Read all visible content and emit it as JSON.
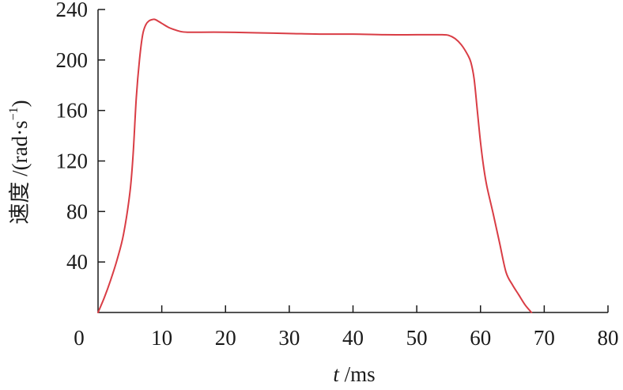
{
  "chart_data": {
    "type": "line",
    "title": "",
    "xlabel": {
      "italic": "t",
      "rest": " /ms"
    },
    "ylabel": {
      "main": "速度 /(rad·s",
      "sup": "−1",
      "end": ")"
    },
    "xlim": [
      0,
      80
    ],
    "ylim": [
      0,
      240
    ],
    "xticks": [
      0,
      10,
      20,
      30,
      40,
      50,
      60,
      70,
      80
    ],
    "yticks": [
      40,
      80,
      120,
      160,
      200,
      240
    ],
    "grid": false,
    "legend": "none",
    "series": [
      {
        "color": "#d93d45",
        "x": [
          0,
          1,
          2,
          3,
          4,
          5,
          5.5,
          6,
          6.5,
          7,
          7.5,
          8,
          8.5,
          9,
          10,
          11,
          12,
          13,
          14,
          15,
          20,
          25,
          30,
          35,
          40,
          45,
          50,
          54,
          55,
          56,
          57,
          58,
          58.5,
          59,
          59.5,
          60,
          60.5,
          61,
          62,
          63,
          64,
          65,
          66,
          67,
          68
        ],
        "y": [
          0,
          12,
          26,
          42,
          62,
          95,
          125,
          170,
          200,
          220,
          228,
          231,
          232,
          232,
          229,
          226,
          224,
          222.5,
          222,
          222,
          222,
          221.5,
          221,
          220.5,
          220.5,
          220,
          220,
          220,
          219.5,
          217,
          212,
          204,
          198,
          185,
          160,
          135,
          115,
          100,
          78,
          55,
          32,
          22,
          14,
          6,
          0
        ]
      }
    ]
  }
}
